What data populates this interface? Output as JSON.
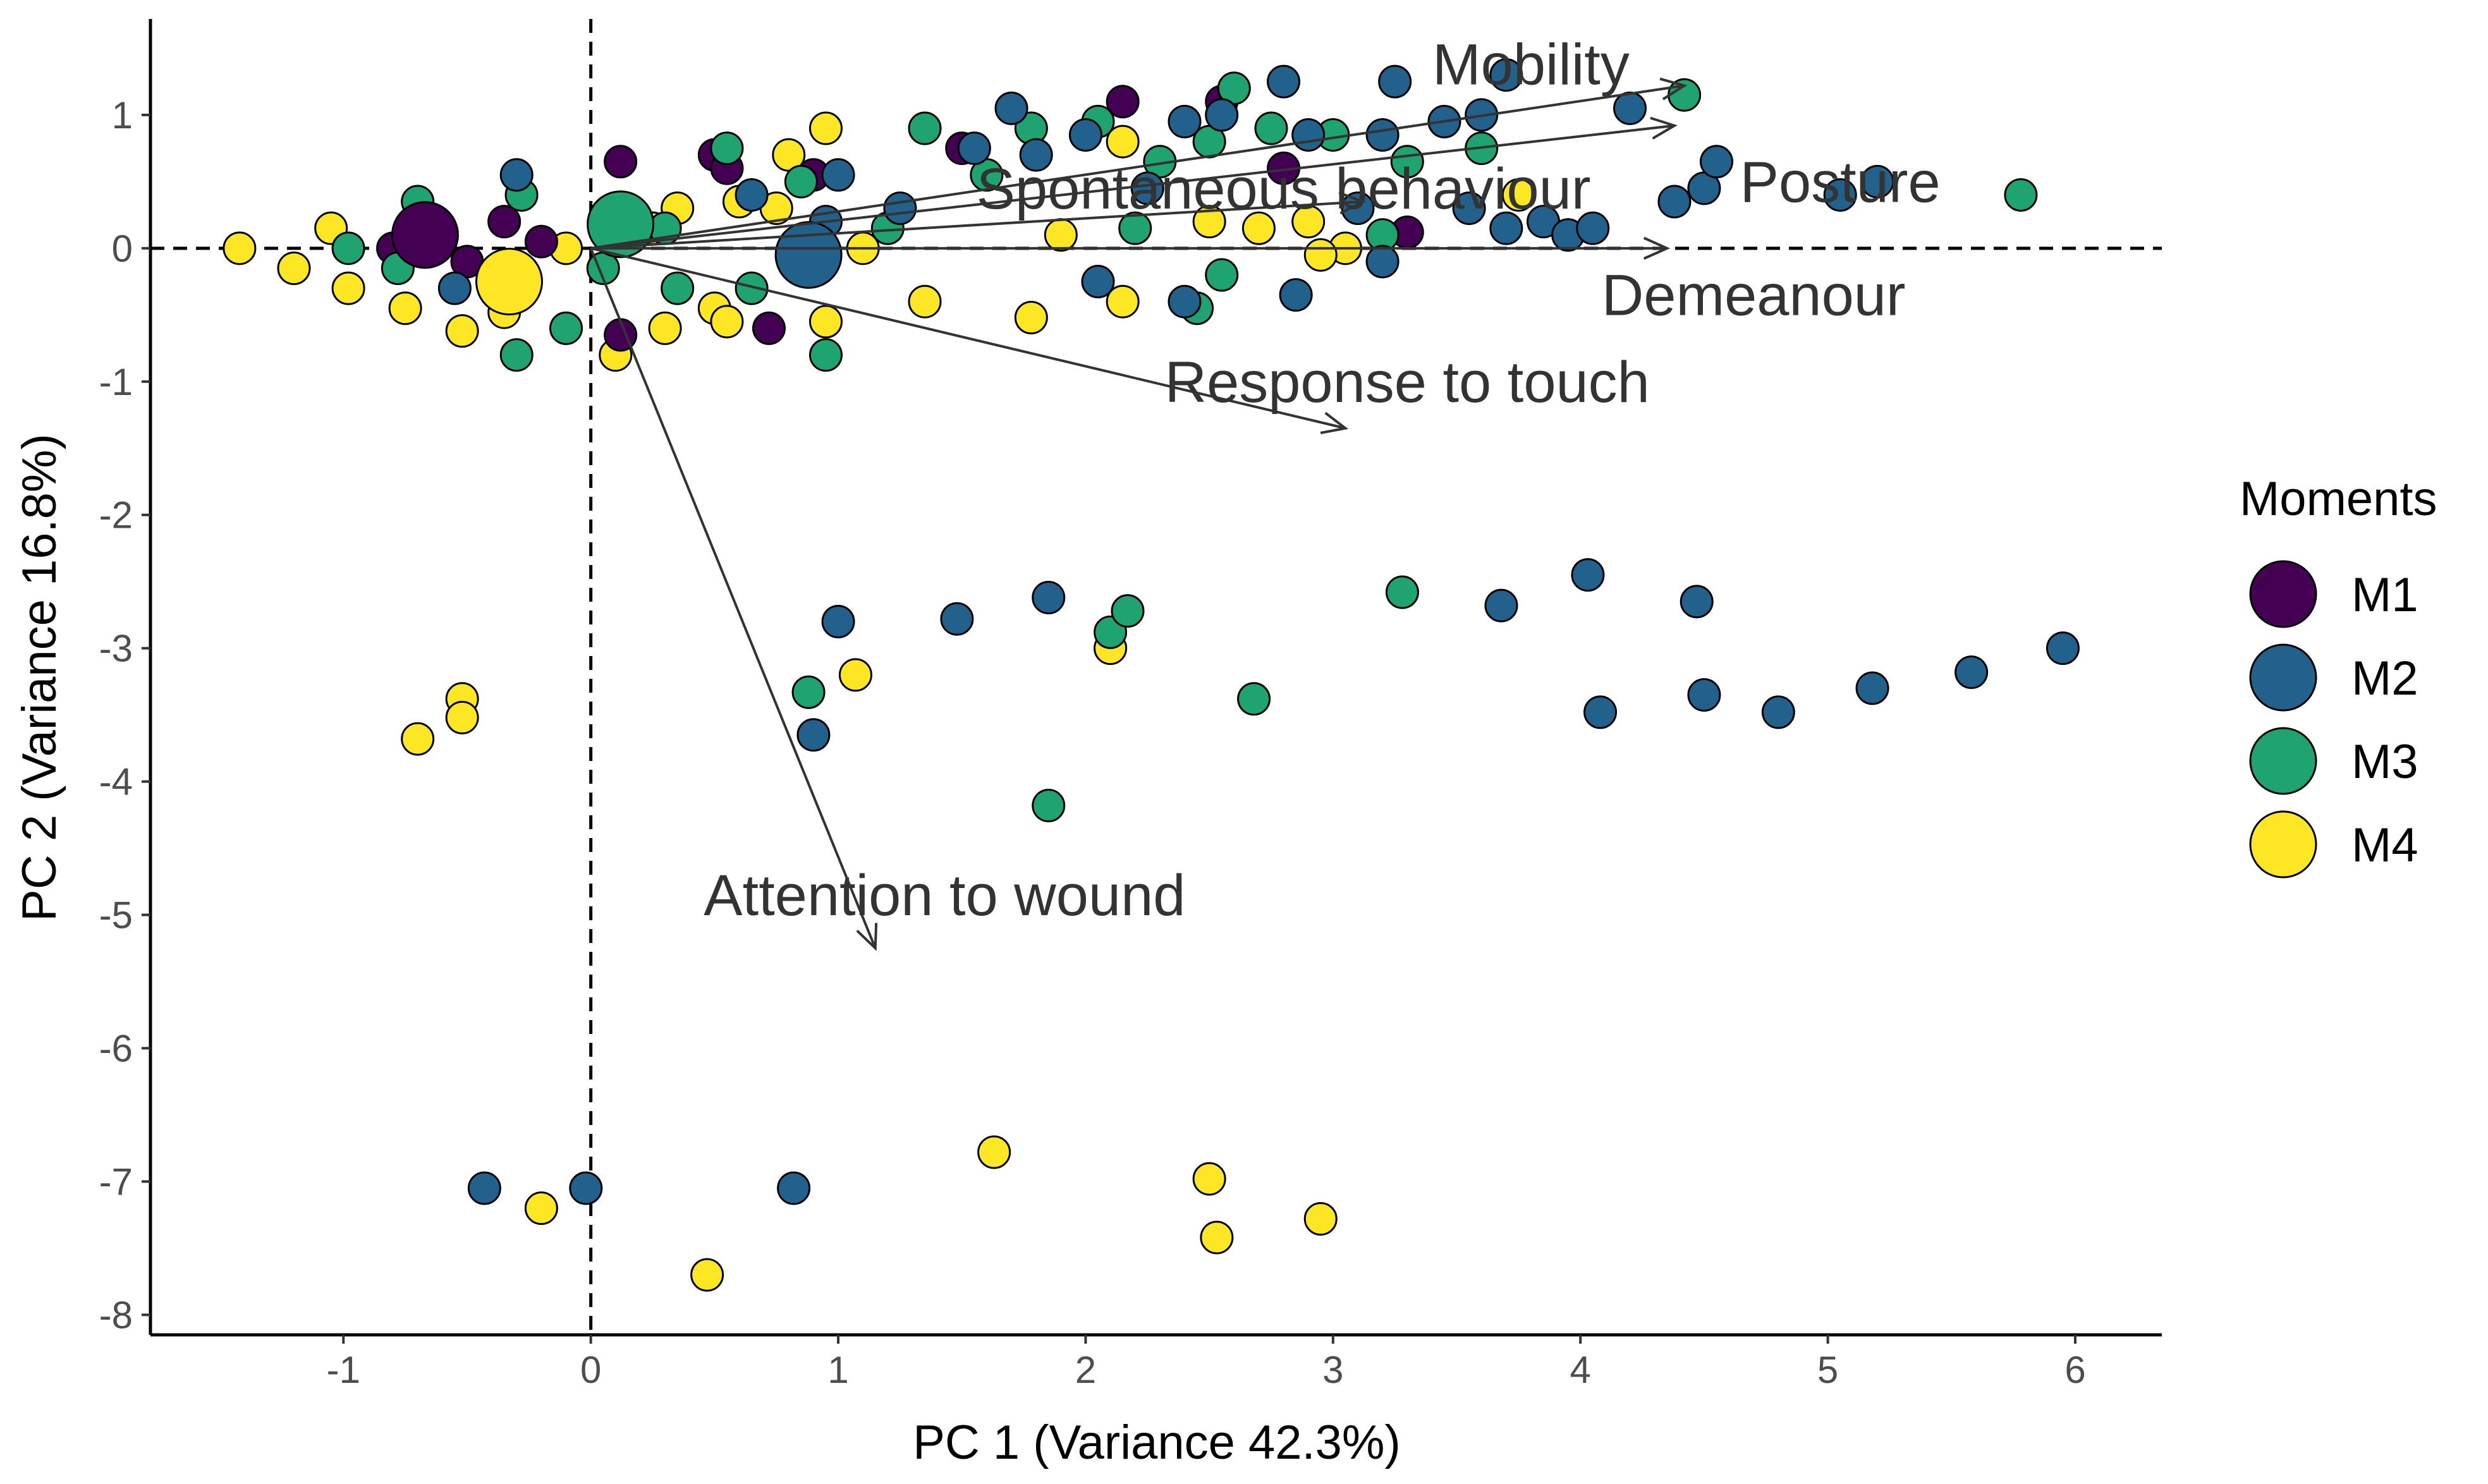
{
  "chart_data": {
    "type": "scatter",
    "subtype": "pca-biplot",
    "xlabel": "PC 1 (Variance 42.3%)",
    "ylabel": "PC 2 (Variance 16.8%)",
    "xlim": [
      -1.78,
      6.35
    ],
    "ylim": [
      -8.15,
      1.72
    ],
    "x_ticks": [
      -1,
      0,
      1,
      2,
      3,
      4,
      5,
      6
    ],
    "y_ticks": [
      1,
      0,
      -1,
      -2,
      -3,
      -4,
      -5,
      -6,
      -7,
      -8
    ],
    "legend": {
      "title": "Moments",
      "position": "right",
      "entries": [
        {
          "name": "M1",
          "color": "#440154"
        },
        {
          "name": "M2",
          "color": "#21618c"
        },
        {
          "name": "M3",
          "color": "#1fa371"
        },
        {
          "name": "M4",
          "color": "#fde725"
        }
      ]
    },
    "loadings": [
      {
        "name": "Mobility",
        "x": 4.42,
        "y": 1.22,
        "label_x": 3.8,
        "label_y": 1.38
      },
      {
        "name": "Posture",
        "x": 4.38,
        "y": 0.92,
        "label_x": 5.05,
        "label_y": 0.5
      },
      {
        "name": "Spontaneous behaviour",
        "x": 3.12,
        "y": 0.35,
        "label_x": 2.8,
        "label_y": 0.45
      },
      {
        "name": "Demeanour",
        "x": 4.35,
        "y": 0.0,
        "label_x": 4.7,
        "label_y": -0.35
      },
      {
        "name": "Response to touch",
        "x": 3.05,
        "y": -1.35,
        "label_x": 3.3,
        "label_y": -1.0
      },
      {
        "name": "Attention to wound",
        "x": 1.15,
        "y": -5.25,
        "label_x": 1.43,
        "label_y": -4.85
      }
    ],
    "centroids": [
      {
        "series": "M1",
        "x": -0.67,
        "y": 0.1
      },
      {
        "series": "M2",
        "x": 0.88,
        "y": -0.05
      },
      {
        "series": "M3",
        "x": 0.12,
        "y": 0.18
      },
      {
        "series": "M4",
        "x": -0.33,
        "y": -0.25
      }
    ],
    "series": [
      {
        "name": "M1",
        "points": [
          [
            -0.8,
            0.0
          ],
          [
            -0.7,
            0.05
          ],
          [
            -0.5,
            -0.1
          ],
          [
            -0.35,
            0.2
          ],
          [
            -0.2,
            0.05
          ],
          [
            0.12,
            0.65
          ],
          [
            0.12,
            -0.65
          ],
          [
            0.5,
            0.7
          ],
          [
            0.55,
            0.6
          ],
          [
            0.72,
            -0.6
          ],
          [
            0.9,
            0.55
          ],
          [
            1.5,
            0.75
          ],
          [
            2.15,
            1.1
          ],
          [
            2.55,
            1.1
          ],
          [
            2.8,
            0.6
          ],
          [
            3.3,
            0.12
          ]
        ]
      },
      {
        "name": "M2",
        "points": [
          [
            -0.3,
            0.55
          ],
          [
            -0.55,
            -0.3
          ],
          [
            0.65,
            0.4
          ],
          [
            0.95,
            0.2
          ],
          [
            1.0,
            0.55
          ],
          [
            1.25,
            0.3
          ],
          [
            1.55,
            0.75
          ],
          [
            1.7,
            1.05
          ],
          [
            1.8,
            0.7
          ],
          [
            2.0,
            0.85
          ],
          [
            2.25,
            0.45
          ],
          [
            2.4,
            0.95
          ],
          [
            2.55,
            1.0
          ],
          [
            2.8,
            1.25
          ],
          [
            2.9,
            0.85
          ],
          [
            3.1,
            0.3
          ],
          [
            3.25,
            1.25
          ],
          [
            3.2,
            0.85
          ],
          [
            3.45,
            0.95
          ],
          [
            3.6,
            1.0
          ],
          [
            3.7,
            1.3
          ],
          [
            3.55,
            0.3
          ],
          [
            3.7,
            0.15
          ],
          [
            3.85,
            0.2
          ],
          [
            3.95,
            0.1
          ],
          [
            4.05,
            0.15
          ],
          [
            4.2,
            1.05
          ],
          [
            4.38,
            0.35
          ],
          [
            4.5,
            0.45
          ],
          [
            4.55,
            0.65
          ],
          [
            5.05,
            0.4
          ],
          [
            5.2,
            0.5
          ],
          [
            2.85,
            -0.35
          ],
          [
            2.4,
            -0.4
          ],
          [
            2.05,
            -0.25
          ],
          [
            3.2,
            -0.1
          ],
          [
            1.0,
            -2.8
          ],
          [
            0.9,
            -3.65
          ],
          [
            1.48,
            -2.78
          ],
          [
            1.85,
            -2.62
          ],
          [
            3.68,
            -2.68
          ],
          [
            4.03,
            -2.45
          ],
          [
            4.47,
            -2.65
          ],
          [
            4.08,
            -3.48
          ],
          [
            4.5,
            -3.35
          ],
          [
            4.8,
            -3.48
          ],
          [
            5.18,
            -3.3
          ],
          [
            5.58,
            -3.18
          ],
          [
            5.95,
            -3.0
          ],
          [
            -0.43,
            -7.05
          ],
          [
            -0.02,
            -7.05
          ],
          [
            0.82,
            -7.05
          ]
        ]
      },
      {
        "name": "M3",
        "points": [
          [
            -0.7,
            0.35
          ],
          [
            -0.78,
            -0.15
          ],
          [
            -0.98,
            0.0
          ],
          [
            -0.28,
            0.4
          ],
          [
            -0.3,
            -0.8
          ],
          [
            -0.1,
            -0.6
          ],
          [
            0.05,
            -0.15
          ],
          [
            0.3,
            0.15
          ],
          [
            0.55,
            0.75
          ],
          [
            0.35,
            -0.3
          ],
          [
            0.65,
            -0.3
          ],
          [
            0.85,
            0.5
          ],
          [
            0.95,
            -0.8
          ],
          [
            1.2,
            0.15
          ],
          [
            1.35,
            0.9
          ],
          [
            1.6,
            0.55
          ],
          [
            1.78,
            0.9
          ],
          [
            2.05,
            0.95
          ],
          [
            2.2,
            0.15
          ],
          [
            2.3,
            0.65
          ],
          [
            2.5,
            0.8
          ],
          [
            2.6,
            1.2
          ],
          [
            2.55,
            -0.2
          ],
          [
            2.45,
            -0.45
          ],
          [
            2.75,
            0.9
          ],
          [
            3.0,
            0.85
          ],
          [
            3.3,
            0.65
          ],
          [
            3.6,
            0.75
          ],
          [
            3.2,
            0.1
          ],
          [
            4.42,
            1.15
          ],
          [
            5.78,
            0.4
          ],
          [
            0.88,
            -3.33
          ],
          [
            2.1,
            -2.88
          ],
          [
            2.17,
            -2.72
          ],
          [
            2.68,
            -3.38
          ],
          [
            3.28,
            -2.58
          ],
          [
            1.85,
            -4.18
          ]
        ]
      },
      {
        "name": "M4",
        "points": [
          [
            -1.42,
            0.0
          ],
          [
            -1.2,
            -0.15
          ],
          [
            -1.05,
            0.15
          ],
          [
            -0.98,
            -0.3
          ],
          [
            -0.75,
            -0.45
          ],
          [
            -0.52,
            -0.62
          ],
          [
            -0.35,
            -0.48
          ],
          [
            -0.1,
            0.0
          ],
          [
            0.1,
            -0.8
          ],
          [
            0.25,
            0.15
          ],
          [
            0.3,
            -0.6
          ],
          [
            0.35,
            0.3
          ],
          [
            0.5,
            -0.45
          ],
          [
            0.55,
            -0.55
          ],
          [
            0.6,
            0.35
          ],
          [
            0.75,
            0.3
          ],
          [
            0.8,
            0.7
          ],
          [
            0.95,
            0.9
          ],
          [
            0.95,
            -0.55
          ],
          [
            1.1,
            0.0
          ],
          [
            1.35,
            -0.4
          ],
          [
            1.78,
            -0.52
          ],
          [
            1.9,
            0.1
          ],
          [
            2.15,
            0.8
          ],
          [
            2.15,
            -0.4
          ],
          [
            2.5,
            0.2
          ],
          [
            2.7,
            0.15
          ],
          [
            2.9,
            0.2
          ],
          [
            3.05,
            0.0
          ],
          [
            2.95,
            -0.05
          ],
          [
            3.75,
            0.4
          ],
          [
            2.1,
            -3.0
          ],
          [
            1.07,
            -3.2
          ],
          [
            -0.52,
            -3.38
          ],
          [
            -0.52,
            -3.52
          ],
          [
            -0.7,
            -3.68
          ],
          [
            -0.2,
            -7.2
          ],
          [
            0.47,
            -7.7
          ],
          [
            1.63,
            -6.78
          ],
          [
            2.5,
            -6.98
          ],
          [
            2.53,
            -7.42
          ],
          [
            2.95,
            -7.28
          ]
        ]
      }
    ]
  }
}
